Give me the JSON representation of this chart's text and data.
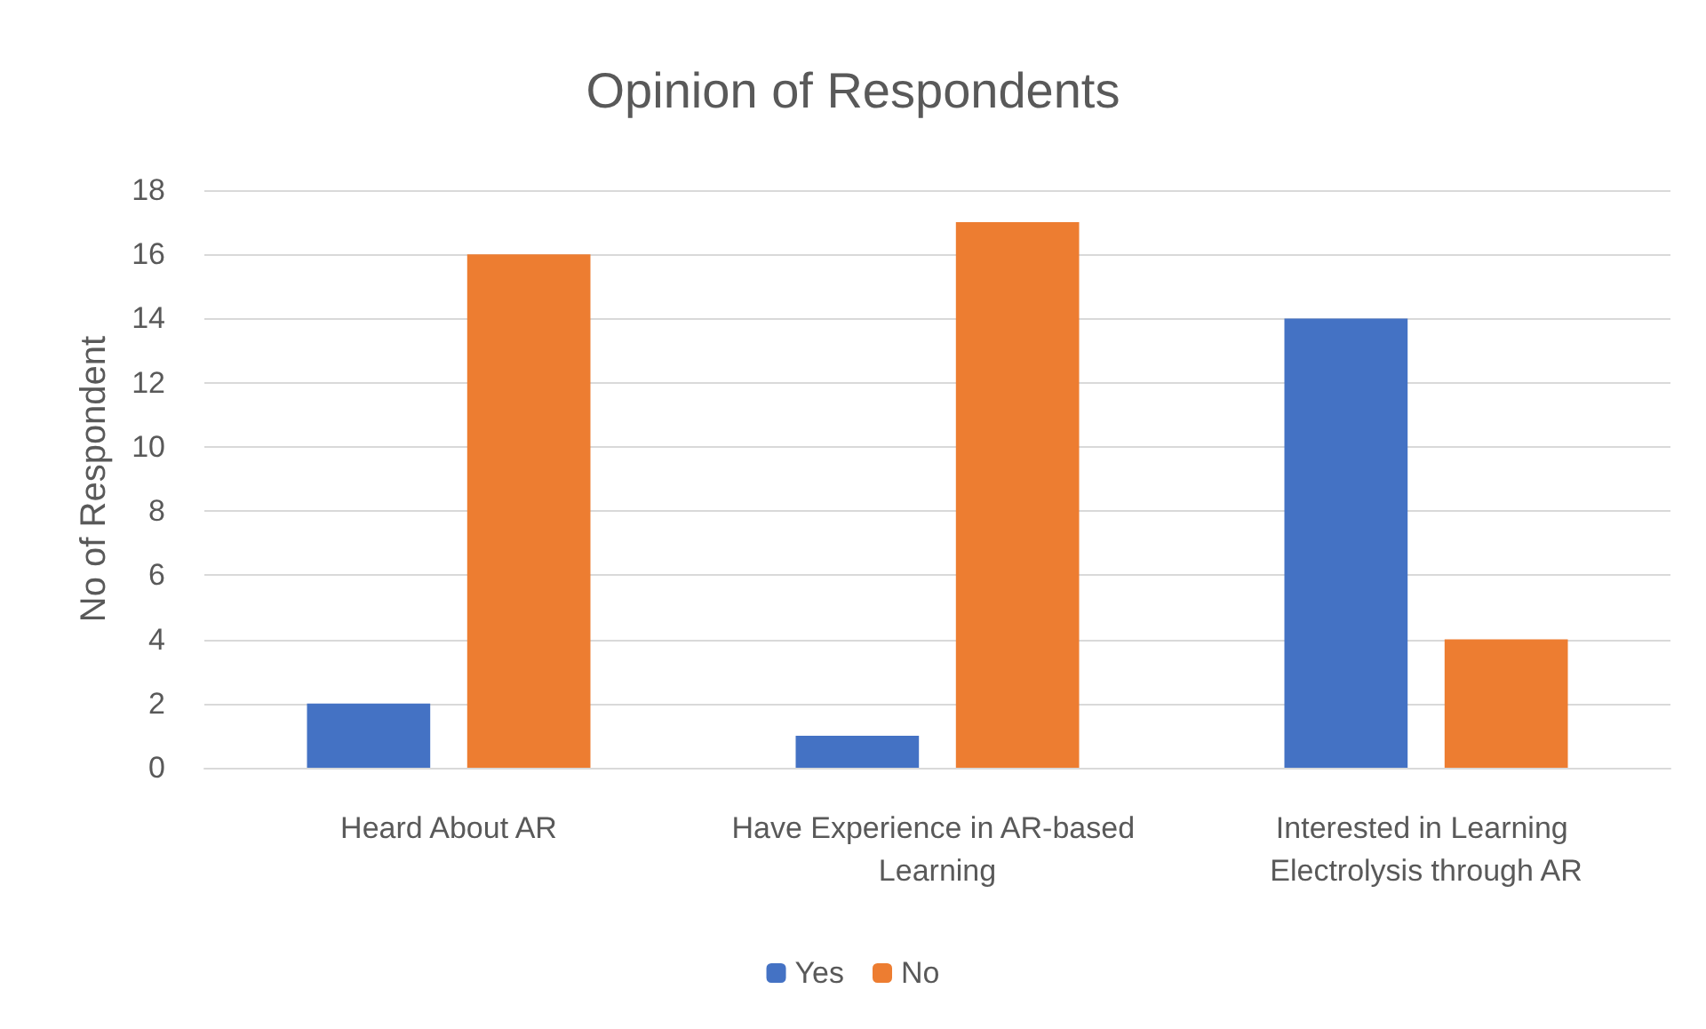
{
  "chart_data": {
    "type": "bar",
    "title": "Opinion of Respondents",
    "ylabel": "No of Respondent",
    "categories": [
      "Heard About AR",
      "Have Experience in AR-based Learning",
      "Interested in Learning Electrolysis through AR"
    ],
    "series": [
      {
        "name": "Yes",
        "color": "#4472c4",
        "values": [
          2,
          1,
          14
        ]
      },
      {
        "name": "No",
        "color": "#ed7d31",
        "values": [
          16,
          17,
          4
        ]
      }
    ],
    "ylim": [
      0,
      18
    ],
    "yticks": [
      0,
      2,
      4,
      6,
      8,
      10,
      12,
      14,
      16,
      18
    ],
    "grid": "y",
    "legend": "bottom"
  }
}
